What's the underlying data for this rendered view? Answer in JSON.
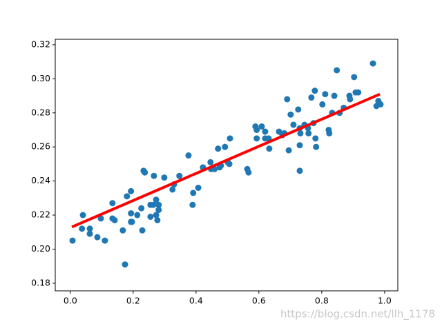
{
  "chart_data": {
    "type": "scatter",
    "watermark": "https://blog.csdn.net/llh_1178",
    "xlim": [
      -0.048,
      1.042
    ],
    "ylim": [
      0.1755,
      0.3232
    ],
    "xticks": [
      {
        "value": 0,
        "label": "0.0"
      },
      0.2,
      0.4,
      0.6,
      0.8,
      {
        "value": 1,
        "label": "1.0"
      }
    ],
    "yticks": [
      0.18,
      {
        "value": 0.2,
        "label": "0.20"
      },
      0.22,
      0.24,
      0.26,
      0.28,
      {
        "value": 0.3,
        "label": "0.30"
      },
      0.32
    ],
    "series": [
      {
        "type": "scatter",
        "color": "#1f77b4",
        "x": [
          0.007,
          0.04,
          0.037,
          0.062,
          0.062,
          0.086,
          0.11,
          0.097,
          0.134,
          0.134,
          0.141,
          0.167,
          0.174,
          0.18,
          0.193,
          0.193,
          0.193,
          0.196,
          0.213,
          0.226,
          0.229,
          0.233,
          0.237,
          0.255,
          0.255,
          0.264,
          0.266,
          0.273,
          0.273,
          0.277,
          0.281,
          0.281,
          0.299,
          0.325,
          0.33,
          0.347,
          0.376,
          0.391,
          0.389,
          0.407,
          0.422,
          0.446,
          0.448,
          0.459,
          0.47,
          0.475,
          0.479,
          0.492,
          0.501,
          0.506,
          0.508,
          0.563,
          0.567,
          0.589,
          0.593,
          0.593,
          0.609,
          0.62,
          0.62,
          0.631,
          0.633,
          0.664,
          0.675,
          0.681,
          0.69,
          0.695,
          0.701,
          0.71,
          0.725,
          0.73,
          0.732,
          0.73,
          0.73,
          0.745,
          0.756,
          0.758,
          0.767,
          0.774,
          0.778,
          0.78,
          0.782,
          0.802,
          0.811,
          0.822,
          0.824,
          0.833,
          0.84,
          0.848,
          0.857,
          0.87,
          0.888,
          0.89,
          0.903,
          0.908,
          0.916,
          0.963,
          0.974,
          0.98,
          0.987
        ],
        "values": [
          0.205,
          0.22,
          0.212,
          0.212,
          0.209,
          0.207,
          0.205,
          0.218,
          0.227,
          0.218,
          0.217,
          0.211,
          0.191,
          0.231,
          0.234,
          0.221,
          0.216,
          0.216,
          0.22,
          0.224,
          0.211,
          0.246,
          0.245,
          0.226,
          0.219,
          0.226,
          0.243,
          0.229,
          0.22,
          0.217,
          0.223,
          0.226,
          0.242,
          0.235,
          0.238,
          0.243,
          0.255,
          0.233,
          0.226,
          0.236,
          0.248,
          0.251,
          0.247,
          0.247,
          0.259,
          0.248,
          0.249,
          0.26,
          0.251,
          0.25,
          0.265,
          0.247,
          0.245,
          0.272,
          0.27,
          0.265,
          0.272,
          0.269,
          0.265,
          0.265,
          0.259,
          0.269,
          0.267,
          0.268,
          0.288,
          0.258,
          0.279,
          0.273,
          0.282,
          0.271,
          0.268,
          0.261,
          0.246,
          0.273,
          0.271,
          0.268,
          0.289,
          0.274,
          0.293,
          0.265,
          0.26,
          0.285,
          0.291,
          0.27,
          0.268,
          0.28,
          0.29,
          0.305,
          0.28,
          0.283,
          0.29,
          0.288,
          0.301,
          0.292,
          0.292,
          0.309,
          0.284,
          0.287,
          0.285
        ]
      },
      {
        "type": "line",
        "color": "#ff0000",
        "x": [
          0.005,
          0.985
        ],
        "values": [
          0.213,
          0.291
        ]
      }
    ]
  }
}
